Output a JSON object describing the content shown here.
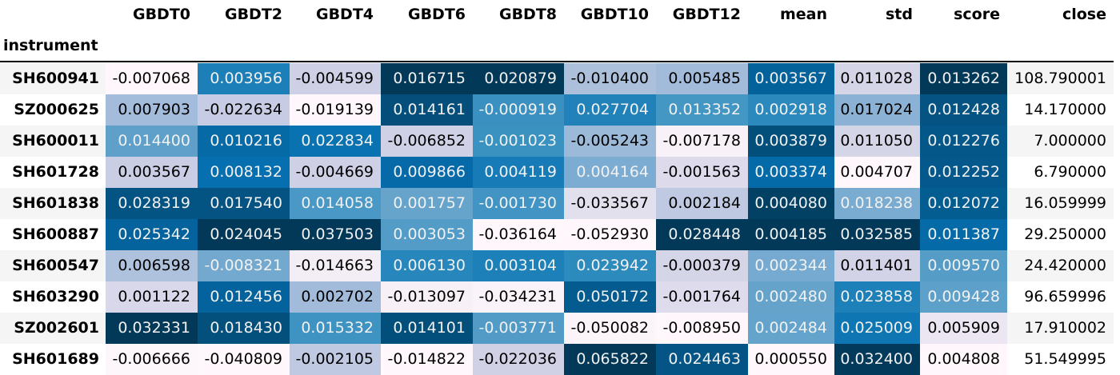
{
  "chart_data": {
    "type": "table",
    "index_name": "instrument",
    "columns": [
      "GBDT0",
      "GBDT2",
      "GBDT4",
      "GBDT6",
      "GBDT8",
      "GBDT10",
      "GBDT12",
      "mean",
      "std",
      "score",
      "close"
    ],
    "rows": [
      {
        "instrument": "SH600941",
        "values": [
          "-0.007068",
          "0.003956",
          "-0.004599",
          "0.016715",
          "0.020879",
          "-0.010400",
          "0.005485",
          "0.003567",
          "0.011028",
          "0.013262",
          "108.790001"
        ]
      },
      {
        "instrument": "SZ000625",
        "values": [
          "0.007903",
          "-0.022634",
          "-0.019139",
          "0.014161",
          "-0.000919",
          "0.027704",
          "0.013352",
          "0.002918",
          "0.017024",
          "0.012428",
          "14.170000"
        ]
      },
      {
        "instrument": "SH600011",
        "values": [
          "0.014400",
          "0.010216",
          "0.022834",
          "-0.006852",
          "-0.001023",
          "-0.005243",
          "-0.007178",
          "0.003879",
          "0.011050",
          "0.012276",
          "7.000000"
        ]
      },
      {
        "instrument": "SH601728",
        "values": [
          "0.003567",
          "0.008132",
          "-0.004669",
          "0.009866",
          "0.004119",
          "0.004164",
          "-0.001563",
          "0.003374",
          "0.004707",
          "0.012252",
          "6.790000"
        ]
      },
      {
        "instrument": "SH601838",
        "values": [
          "0.028319",
          "0.017540",
          "0.014058",
          "0.001757",
          "-0.001730",
          "-0.033567",
          "0.002184",
          "0.004080",
          "0.018238",
          "0.012072",
          "16.059999"
        ]
      },
      {
        "instrument": "SH600887",
        "values": [
          "0.025342",
          "0.024045",
          "0.037503",
          "0.003053",
          "-0.036164",
          "-0.052930",
          "0.028448",
          "0.004185",
          "0.032585",
          "0.011387",
          "29.250000"
        ]
      },
      {
        "instrument": "SH600547",
        "values": [
          "0.006598",
          "-0.008321",
          "-0.014663",
          "0.006130",
          "0.003104",
          "0.023942",
          "-0.000379",
          "0.002344",
          "0.011401",
          "0.009570",
          "24.420000"
        ]
      },
      {
        "instrument": "SH603290",
        "values": [
          "0.001122",
          "0.012456",
          "0.002702",
          "-0.013097",
          "-0.034231",
          "0.050172",
          "-0.001764",
          "0.002480",
          "0.023858",
          "0.009428",
          "96.659996"
        ]
      },
      {
        "instrument": "SZ002601",
        "values": [
          "0.032331",
          "0.018430",
          "0.015332",
          "0.014101",
          "-0.003771",
          "-0.050082",
          "-0.008950",
          "0.002484",
          "0.025009",
          "0.005909",
          "17.910002"
        ]
      },
      {
        "instrument": "SH601689",
        "values": [
          "-0.006666",
          "-0.040809",
          "-0.002105",
          "-0.014822",
          "-0.022036",
          "0.065822",
          "0.024463",
          "0.000550",
          "0.032400",
          "0.004808",
          "51.549995"
        ]
      }
    ],
    "colormap": "PuBu",
    "gradient_columns": [
      "GBDT0",
      "GBDT2",
      "GBDT4",
      "GBDT6",
      "GBDT8",
      "GBDT10",
      "GBDT12",
      "mean",
      "std",
      "score"
    ],
    "striped_rows": true,
    "colors": {
      "stripe": "#f5f5f5",
      "colormap_low": "#fff7fb",
      "colormap_high": "#023858"
    }
  }
}
